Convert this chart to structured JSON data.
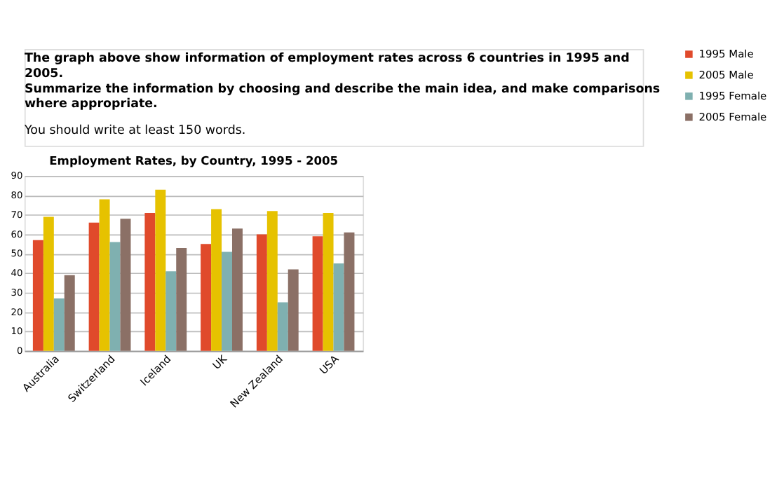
{
  "chart_data": {
    "type": "bar",
    "title": "Employment Rates, by Country, 1995 - 2005",
    "annotations": [
      "The graph above show information of employment rates across 6 countries in 1995 and 2005.",
      "Summarize the information by choosing and describe the main idea, and make comparisons where appropriate.",
      "You should write at least 150 words."
    ],
    "categories": [
      "Australia",
      "Switzerland",
      "Iceland",
      "UK",
      "New Zealand",
      "USA"
    ],
    "series": [
      {
        "name": "1995 Male",
        "color": "#e04a2b",
        "values": [
          57,
          66,
          71,
          55,
          60,
          59
        ]
      },
      {
        "name": "2005 Male",
        "color": "#e6c200",
        "values": [
          69,
          78,
          83,
          73,
          72,
          71
        ]
      },
      {
        "name": "1995 Female",
        "color": "#7fb0b0",
        "values": [
          27,
          56,
          41,
          51,
          25,
          45
        ]
      },
      {
        "name": "2005 Female",
        "color": "#8b7066",
        "values": [
          39,
          68,
          53,
          63,
          42,
          61
        ]
      }
    ],
    "ylim": [
      0,
      90
    ],
    "yticks": [
      0,
      10,
      20,
      30,
      40,
      50,
      60,
      70,
      80,
      90
    ],
    "grid": "y",
    "legend": "right"
  }
}
